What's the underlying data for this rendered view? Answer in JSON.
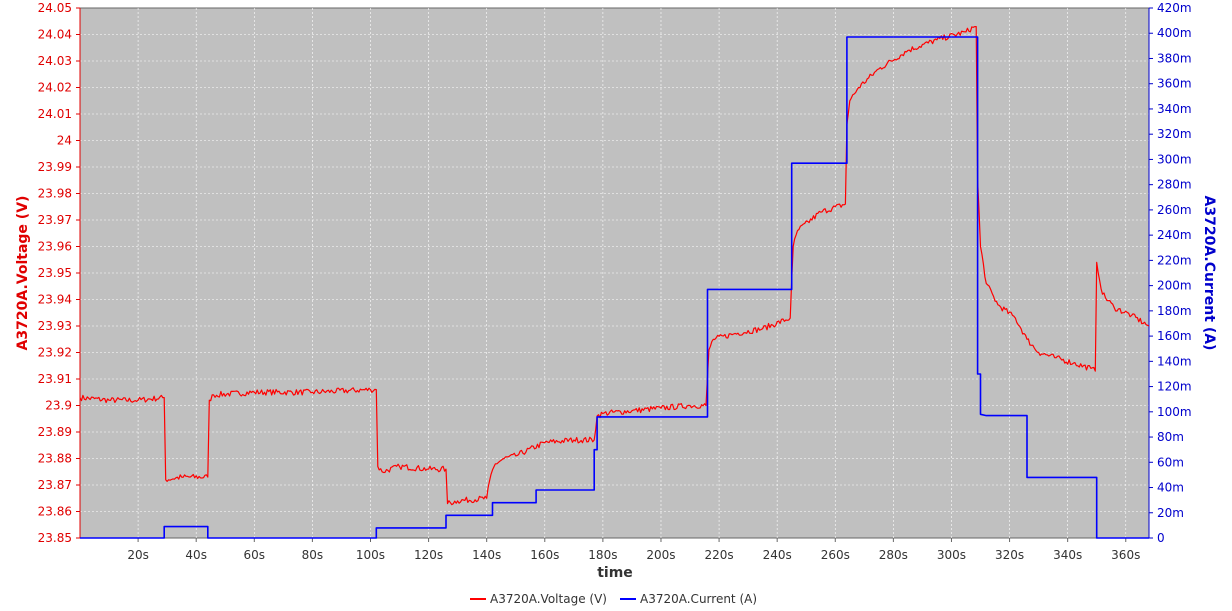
{
  "chart_data": {
    "type": "line",
    "xlabel": "time",
    "xlim": [
      0,
      368
    ],
    "x_ticks": [
      20,
      40,
      60,
      80,
      100,
      120,
      140,
      160,
      180,
      200,
      220,
      240,
      260,
      280,
      300,
      320,
      340,
      360
    ],
    "x_tick_labels": [
      "20s",
      "40s",
      "60s",
      "80s",
      "100s",
      "120s",
      "140s",
      "160s",
      "180s",
      "200s",
      "220s",
      "240s",
      "260s",
      "280s",
      "300s",
      "320s",
      "340s",
      "360s"
    ],
    "y_left": {
      "label": "A3720A.Voltage (V)",
      "range": [
        23.85,
        24.05
      ],
      "ticks": [
        23.85,
        23.86,
        23.87,
        23.88,
        23.89,
        23.9,
        23.91,
        23.92,
        23.93,
        23.94,
        23.95,
        23.96,
        23.97,
        23.98,
        23.99,
        24.0,
        24.01,
        24.02,
        24.03,
        24.04,
        24.05
      ],
      "tick_labels": [
        "23.85",
        "23.86",
        "23.87",
        "23.88",
        "23.89",
        "23.9",
        "23.91",
        "23.92",
        "23.93",
        "23.94",
        "23.95",
        "23.96",
        "23.97",
        "23.98",
        "23.99",
        "24",
        "24.01",
        "24.02",
        "24.03",
        "24.04",
        "24.05"
      ]
    },
    "y_right": {
      "label": "A3720A.Current (A)",
      "range": [
        0,
        0.42
      ],
      "ticks": [
        0,
        0.02,
        0.04,
        0.06,
        0.08,
        0.1,
        0.12,
        0.14,
        0.16,
        0.18,
        0.2,
        0.22,
        0.24,
        0.26,
        0.28,
        0.3,
        0.32,
        0.34,
        0.36,
        0.38,
        0.4,
        0.42
      ],
      "tick_labels": [
        "0",
        "20m",
        "40m",
        "60m",
        "80m",
        "100m",
        "120m",
        "140m",
        "160m",
        "180m",
        "200m",
        "220m",
        "240m",
        "260m",
        "280m",
        "300m",
        "320m",
        "340m",
        "360m",
        "380m",
        "400m",
        "420m"
      ]
    },
    "grid": true,
    "legend_position": "bottom-center",
    "series": [
      {
        "name": "A3720A.Voltage (V)",
        "axis": "left",
        "color": "#ff0000",
        "x": [
          0,
          10,
          20,
          29,
          29.5,
          35,
          44,
          44.5,
          46,
          60,
          80,
          100,
          102,
          102.5,
          104,
          110,
          120,
          126,
          126.5,
          130,
          140,
          141.5,
          143,
          146,
          150,
          160,
          170,
          177,
          178,
          180,
          190,
          200,
          210,
          215.5,
          216.5,
          218,
          225,
          235,
          244.5,
          245.5,
          247,
          255,
          263.5,
          264,
          265,
          268,
          275,
          285,
          295,
          305,
          308,
          308.5,
          309,
          310,
          312,
          316,
          322,
          326,
          330,
          336,
          342,
          348,
          349.5,
          350,
          352,
          356,
          362,
          368
        ],
        "y": [
          23.903,
          23.902,
          23.902,
          23.903,
          23.872,
          23.873,
          23.873,
          23.902,
          23.904,
          23.905,
          23.905,
          23.906,
          23.906,
          23.877,
          23.875,
          23.877,
          23.876,
          23.876,
          23.863,
          23.864,
          23.865,
          23.874,
          23.878,
          23.88,
          23.881,
          23.886,
          23.887,
          23.887,
          23.896,
          23.897,
          23.898,
          23.899,
          23.9,
          23.9,
          23.921,
          23.925,
          23.927,
          23.929,
          23.933,
          23.96,
          23.966,
          23.973,
          23.976,
          24.006,
          24.015,
          24.02,
          24.027,
          24.034,
          24.038,
          24.041,
          24.043,
          24.043,
          23.985,
          23.96,
          23.946,
          23.938,
          23.933,
          23.925,
          23.92,
          23.918,
          23.916,
          23.914,
          23.913,
          23.954,
          23.942,
          23.937,
          23.934,
          23.93
        ]
      },
      {
        "name": "A3720A.Current (A)",
        "axis": "right",
        "color": "#0000ff",
        "x": [
          0,
          29,
          29,
          44,
          44,
          102,
          102,
          126,
          126,
          142,
          142,
          157,
          157,
          177,
          177,
          178,
          178,
          216,
          216,
          245,
          245,
          264,
          264,
          309,
          309,
          310,
          310,
          312,
          312,
          326,
          326,
          350,
          350,
          368
        ],
        "y": [
          0,
          0,
          0.009,
          0.009,
          0,
          0,
          0.008,
          0.008,
          0.018,
          0.018,
          0.028,
          0.028,
          0.038,
          0.038,
          0.07,
          0.07,
          0.096,
          0.096,
          0.197,
          0.197,
          0.297,
          0.297,
          0.397,
          0.397,
          0.13,
          0.13,
          0.098,
          0.097,
          0.097,
          0.097,
          0.048,
          0.048,
          0,
          0
        ]
      }
    ]
  }
}
